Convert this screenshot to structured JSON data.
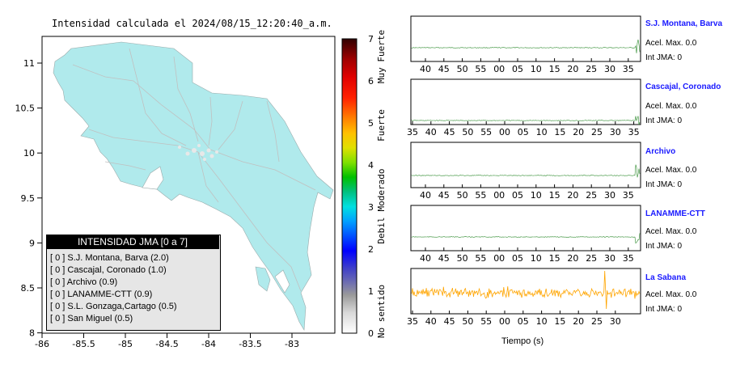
{
  "map": {
    "title": "Intensidad calculada el 2024/08/15_12:20:40_a.m.",
    "x_ticks": [
      "-86",
      "-85.5",
      "-85",
      "-84.5",
      "-84",
      "-83.5",
      "-83"
    ],
    "y_ticks": [
      "11",
      "10.5",
      "10",
      "9.5",
      "9",
      "8.5",
      "8"
    ],
    "land_color": "#b0eaec"
  },
  "colorbar": {
    "ticks": [
      "0",
      "1",
      "2",
      "3",
      "4",
      "5",
      "6",
      "7"
    ],
    "labels": [
      "No sentido",
      "Debil",
      "Moderado",
      "Fuerte",
      "Muy Fuerte"
    ]
  },
  "legend": {
    "title": "INTENSIDAD JMA [0 a 7]",
    "items": [
      "[ 0 ]  S.J. Montana, Barva (2.0)",
      "[ 0 ]  Cascajal, Coronado (1.0)",
      "[ 0 ]  Archivo (0.9)",
      "[ 0 ]  LANAMME-CTT (0.9)",
      "[ 0 ]  S.L. Gonzaga,Cartago (0.5)",
      "[ 0 ]  San Miguel (0.5)"
    ]
  },
  "stations": [
    {
      "name": "S.J. Montana, Barva",
      "acel": "Acel. Max. 0.0",
      "jma": "Int JMA: 0"
    },
    {
      "name": "Cascajal, Coronado",
      "acel": "Acel. Max. 0.0",
      "jma": "Int JMA: 0"
    },
    {
      "name": "Archivo",
      "acel": "Acel. Max. 0.0",
      "jma": "Int JMA: 0"
    },
    {
      "name": "LANAMME-CTT",
      "acel": "Acel. Max. 0.0",
      "jma": "Int JMA: 0"
    },
    {
      "name": "La Sabana",
      "acel": "Acel. Max. 0.0",
      "jma": "Int JMA: 0"
    }
  ],
  "time_xlabel": "Tiempo (s)",
  "chart_data": [
    {
      "type": "heatmap",
      "title": "Intensidad calculada el 2024/08/15_12:20:40_a.m.",
      "xlim": [
        -86,
        -82.5
      ],
      "ylim": [
        8,
        11.3
      ],
      "colorbar_range": [
        0,
        7
      ],
      "colorbar_labels": [
        "No sentido",
        "Debil",
        "Moderado",
        "Fuerte",
        "Muy Fuerte"
      ]
    },
    {
      "type": "line",
      "xlabel": "Tiempo (s)",
      "series": [
        {
          "name": "S.J. Montana, Barva",
          "tick_labels": [
            "40",
            "45",
            "50",
            "55",
            "00",
            "05",
            "10",
            "15",
            "20",
            "25",
            "30",
            "35"
          ],
          "color": "#2e8b2e"
        },
        {
          "name": "Cascajal, Coronado",
          "tick_labels": [
            "35",
            "40",
            "45",
            "50",
            "55",
            "00",
            "05",
            "10",
            "15",
            "20",
            "25",
            "30",
            "35"
          ],
          "color": "#2e8b2e"
        },
        {
          "name": "Archivo",
          "tick_labels": [
            "40",
            "45",
            "50",
            "55",
            "00",
            "05",
            "10",
            "15",
            "20",
            "25",
            "30",
            "35"
          ],
          "color": "#2e8b2e"
        },
        {
          "name": "LANAMME-CTT",
          "tick_labels": [
            "40",
            "45",
            "50",
            "55",
            "00",
            "05",
            "10",
            "15",
            "20",
            "25",
            "30",
            "35"
          ],
          "color": "#2e8b2e"
        },
        {
          "name": "La Sabana",
          "tick_labels": [
            "35",
            "40",
            "45",
            "50",
            "55",
            "00",
            "05",
            "10",
            "15",
            "20",
            "25",
            "30"
          ],
          "color": "#ffa500"
        }
      ]
    }
  ]
}
